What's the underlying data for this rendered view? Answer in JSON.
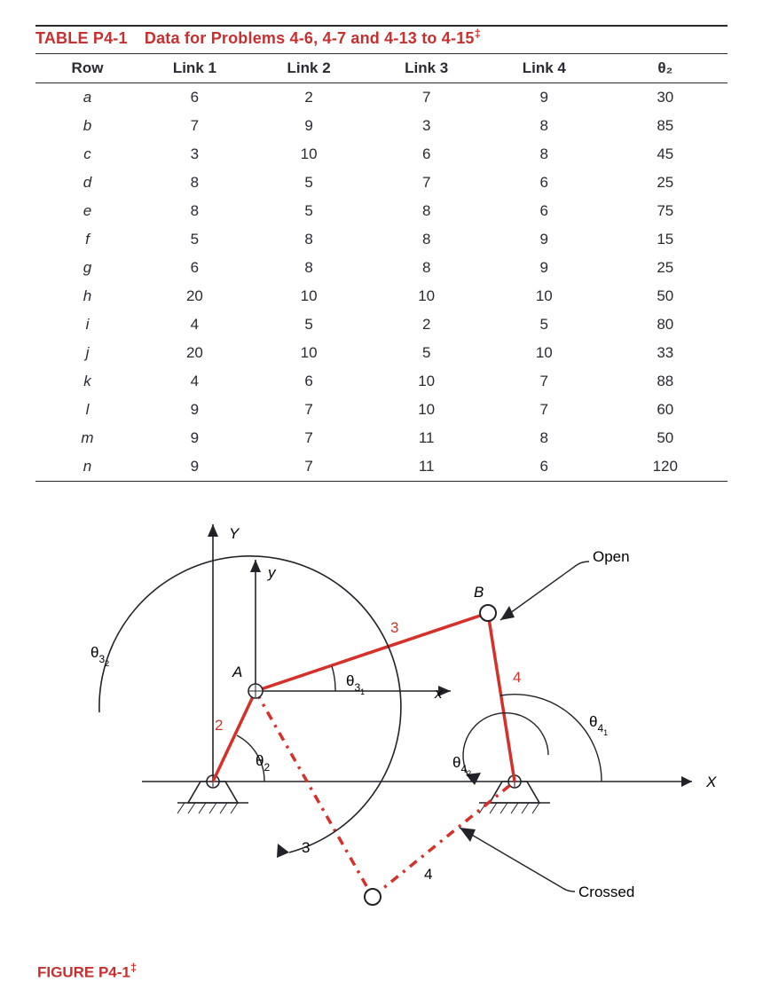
{
  "table": {
    "title_prefix": "TABLE P4-1",
    "title_rest": "Data for Problems 4-6, 4-7 and 4-13 to 4-15",
    "title_dagger": "‡",
    "title_color": "#c92f2f",
    "columns": [
      "Row",
      "Link 1",
      "Link 2",
      "Link 3",
      "Link 4",
      "θ₂"
    ],
    "rows": [
      {
        "label": "a",
        "cells": [
          6,
          2,
          7,
          9,
          30
        ]
      },
      {
        "label": "b",
        "cells": [
          7,
          9,
          3,
          8,
          85
        ]
      },
      {
        "label": "c",
        "cells": [
          3,
          10,
          6,
          8,
          45
        ]
      },
      {
        "label": "d",
        "cells": [
          8,
          5,
          7,
          6,
          25
        ]
      },
      {
        "label": "e",
        "cells": [
          8,
          5,
          8,
          6,
          75
        ]
      },
      {
        "label": "f",
        "cells": [
          5,
          8,
          8,
          9,
          15
        ]
      },
      {
        "label": "g",
        "cells": [
          6,
          8,
          8,
          9,
          25
        ]
      },
      {
        "label": "h",
        "cells": [
          20,
          10,
          10,
          10,
          50
        ]
      },
      {
        "label": "i",
        "cells": [
          4,
          5,
          2,
          5,
          80
        ]
      },
      {
        "label": "j",
        "cells": [
          20,
          10,
          5,
          10,
          33
        ]
      },
      {
        "label": "k",
        "cells": [
          4,
          6,
          10,
          7,
          88
        ]
      },
      {
        "label": "l",
        "cells": [
          9,
          7,
          10,
          7,
          60
        ]
      },
      {
        "label": "m",
        "cells": [
          9,
          7,
          11,
          8,
          50
        ]
      },
      {
        "label": "n",
        "cells": [
          9,
          7,
          11,
          6,
          120
        ]
      }
    ],
    "col_widths": [
      "15%",
      "16%",
      "17%",
      "17%",
      "17%",
      "18%"
    ],
    "border_color": "#2a2a33",
    "font_size": 17,
    "header_font_weight": 700
  },
  "figure": {
    "caption": "FIGURE P4-1",
    "caption_dagger": "‡",
    "caption_color": "#c92f2f",
    "link_color": "#d6302a",
    "line_color": "#222228",
    "link_width": 3.5,
    "thin_width": 1.6,
    "background": "#ffffff",
    "labels": {
      "Y": "Y",
      "y": "y",
      "X": "X",
      "x": "x",
      "A": "A",
      "B": "B",
      "open": "Open",
      "crossed": "Crossed",
      "t2": "θ",
      "t2s": "2",
      "t31": "θ",
      "t31a": "3",
      "t31b": "1",
      "t32": "θ",
      "t32a": "3",
      "t32b": "2",
      "t41": "θ",
      "t41a": "4",
      "t41b": "1",
      "t42": "θ",
      "t42a": "4",
      "t42b": "2",
      "n2": "2",
      "n3a": "3",
      "n3b": "3",
      "n4a": "4",
      "n4b": "4"
    }
  }
}
